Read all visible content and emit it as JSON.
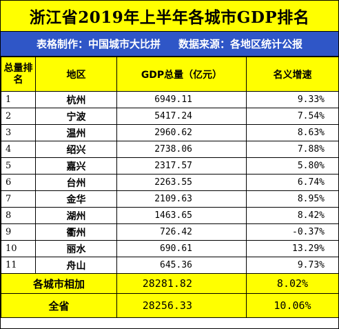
{
  "title": "浙江省2019年上半年各城市GDP排名",
  "subtitle": "表格制作：中国城市大比拼     数据来源：各地区统计公报",
  "headers": {
    "rank": "总量排名",
    "region": "地区",
    "gdp": "GDP总量（亿元）",
    "growth": "名义增速"
  },
  "rows": [
    {
      "rank": "1",
      "city": "杭州",
      "gdp": "6949.11",
      "growth": "9.33%"
    },
    {
      "rank": "2",
      "city": "宁波",
      "gdp": "5417.24",
      "growth": "7.54%"
    },
    {
      "rank": "3",
      "city": "温州",
      "gdp": "2960.62",
      "growth": "8.63%"
    },
    {
      "rank": "4",
      "city": "绍兴",
      "gdp": "2738.06",
      "growth": "7.88%"
    },
    {
      "rank": "5",
      "city": "嘉兴",
      "gdp": "2317.57",
      "growth": "5.80%"
    },
    {
      "rank": "6",
      "city": "台州",
      "gdp": "2263.55",
      "growth": "6.74%"
    },
    {
      "rank": "7",
      "city": "金华",
      "gdp": "2109.63",
      "growth": "8.95%"
    },
    {
      "rank": "8",
      "city": "湖州",
      "gdp": "1463.65",
      "growth": "8.42%"
    },
    {
      "rank": "9",
      "city": "衢州",
      "gdp": "726.42",
      "growth": "-0.37%"
    },
    {
      "rank": "10",
      "city": "丽水",
      "gdp": "690.61",
      "growth": "13.29%"
    },
    {
      "rank": "11",
      "city": "舟山",
      "gdp": "645.36",
      "growth": "9.73%"
    }
  ],
  "totals": [
    {
      "label": "各城市相加",
      "gdp": "28281.82",
      "growth": "8.02%"
    },
    {
      "label": "全省",
      "gdp": "28256.33",
      "growth": "10.06%"
    }
  ],
  "colors": {
    "title_bg": "#ffff00",
    "subtitle_bg": "#2f56c7",
    "subtitle_text": "#ffffff",
    "header_bg": "#ffff00",
    "total_bg": "#ffff00"
  }
}
